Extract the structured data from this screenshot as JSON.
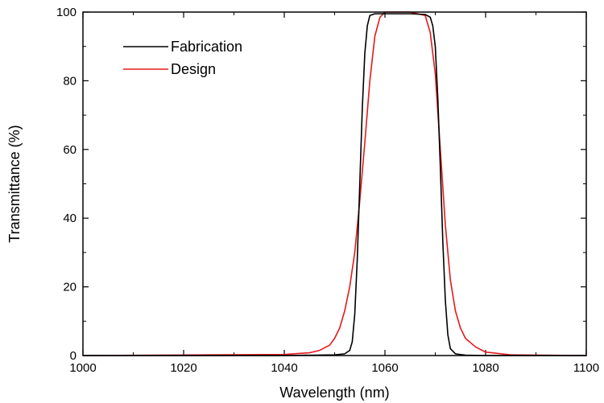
{
  "chart_data": {
    "type": "line",
    "xlabel": "Wavelength (nm)",
    "ylabel": "Transmittance (%)",
    "xlim": [
      1000,
      1100
    ],
    "ylim": [
      0,
      100
    ],
    "xticks": [
      1000,
      1020,
      1040,
      1060,
      1080,
      1100
    ],
    "xtick_labels": [
      "1000",
      "1020",
      "1040",
      "1060",
      "1080",
      "1100"
    ],
    "yticks": [
      0,
      20,
      40,
      60,
      80,
      100
    ],
    "ytick_labels": [
      "0",
      "20",
      "40",
      "60",
      "80",
      "100"
    ],
    "grid": false,
    "legend_position": "top-left",
    "series": [
      {
        "name": "Fabrication",
        "color": "#000000",
        "x": [
          1000,
          1040,
          1050,
          1052,
          1053,
          1053.5,
          1054,
          1054.5,
          1055,
          1055.5,
          1056,
          1056.5,
          1057,
          1058,
          1060,
          1065,
          1068,
          1069,
          1069.5,
          1070,
          1070.5,
          1071,
          1071.5,
          1072,
          1072.5,
          1073,
          1074,
          1076,
          1080,
          1100
        ],
        "y": [
          0,
          0,
          0.2,
          0.5,
          1.5,
          4,
          12,
          28,
          50,
          72,
          88,
          96,
          99,
          99.5,
          99.5,
          99.5,
          99.3,
          98.5,
          96,
          90,
          75,
          55,
          33,
          16,
          6,
          2,
          0.5,
          0.1,
          0,
          0
        ]
      },
      {
        "name": "Design",
        "color": "#e41a1c",
        "x": [
          1000,
          1040,
          1045,
          1047,
          1049,
          1050,
          1051,
          1052,
          1053,
          1054,
          1055,
          1056,
          1057,
          1058,
          1059,
          1060,
          1065,
          1068,
          1069,
          1070,
          1071,
          1072,
          1073,
          1074,
          1075,
          1076,
          1078,
          1080,
          1085,
          1100
        ],
        "y": [
          0,
          0.3,
          0.8,
          1.5,
          3,
          5,
          8,
          13,
          20,
          30,
          45,
          62,
          80,
          93,
          98.5,
          100,
          100,
          99,
          94,
          82,
          60,
          38,
          22,
          13,
          8,
          5,
          2.5,
          1,
          0.2,
          0
        ]
      }
    ]
  }
}
